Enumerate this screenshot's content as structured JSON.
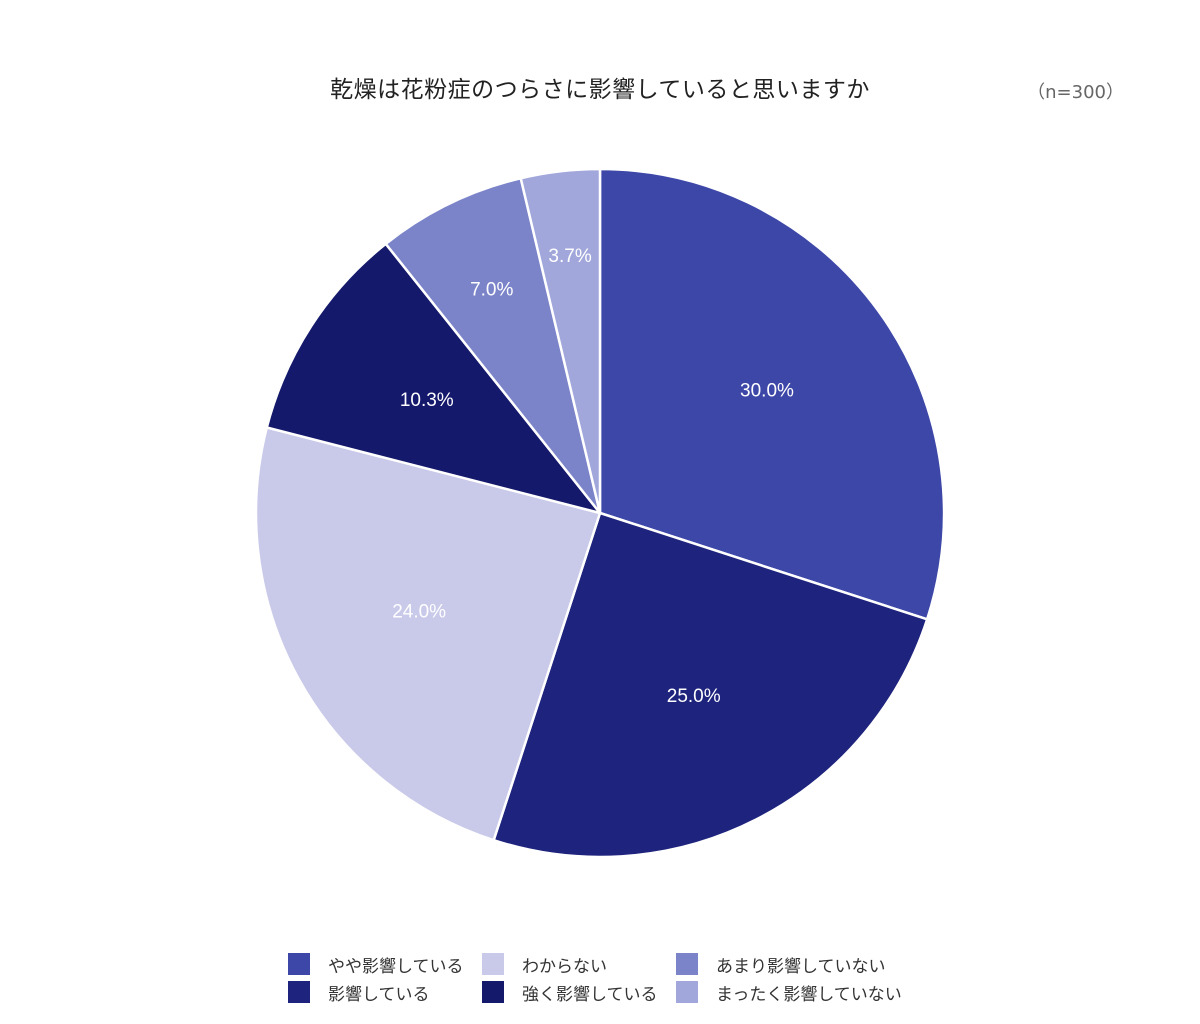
{
  "title": "乾燥は花粉症のつらさに影響していると思いますか",
  "sample_size": "（n=300）",
  "legend": [
    {
      "label": "やや影響している",
      "color": "#3d47a8"
    },
    {
      "label": "わからない",
      "color": "#c9c9e9"
    },
    {
      "label": "あまり影響していない",
      "color": "#7b84c9"
    },
    {
      "label": "影響している",
      "color": "#1e237d"
    },
    {
      "label": "強く影響している",
      "color": "#14196b"
    },
    {
      "label": "まったく影響していない",
      "color": "#a1a7db"
    }
  ],
  "slices": [
    {
      "label": "30.0%"
    },
    {
      "label": "25.0%"
    },
    {
      "label": "24.0%"
    },
    {
      "label": "10.3%"
    },
    {
      "label": "7.0%"
    },
    {
      "label": "3.7%"
    }
  ],
  "chart_data": {
    "type": "pie",
    "title": "乾燥は花粉症のつらさに影響していると思いますか",
    "subtitle": "(n=300)",
    "categories": [
      "やや影響している",
      "影響している",
      "わからない",
      "強く影響している",
      "あまり影響していない",
      "まったく影響していない"
    ],
    "values": [
      30.0,
      25.0,
      24.0,
      10.3,
      7.0,
      3.7
    ],
    "colors": [
      "#3d47a8",
      "#1e237d",
      "#c9c9e9",
      "#14196b",
      "#7b84c9",
      "#a1a7db"
    ],
    "unit": "%",
    "start_angle": "12 o'clock",
    "direction": "clockwise",
    "legend_position": "bottom"
  }
}
